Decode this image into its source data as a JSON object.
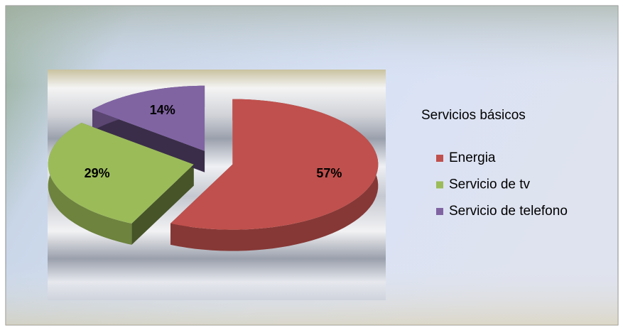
{
  "chart_data": {
    "type": "pie",
    "legend_title": "Servicios básicos",
    "categories": [
      "Energia",
      "Servicio de tv",
      "Servicio de telefono"
    ],
    "values": [
      57,
      29,
      14
    ],
    "value_labels": [
      "57%",
      "29%",
      "14%"
    ],
    "colors": [
      "#c0504d",
      "#9bbb59",
      "#8064a2"
    ],
    "legend": "right"
  }
}
